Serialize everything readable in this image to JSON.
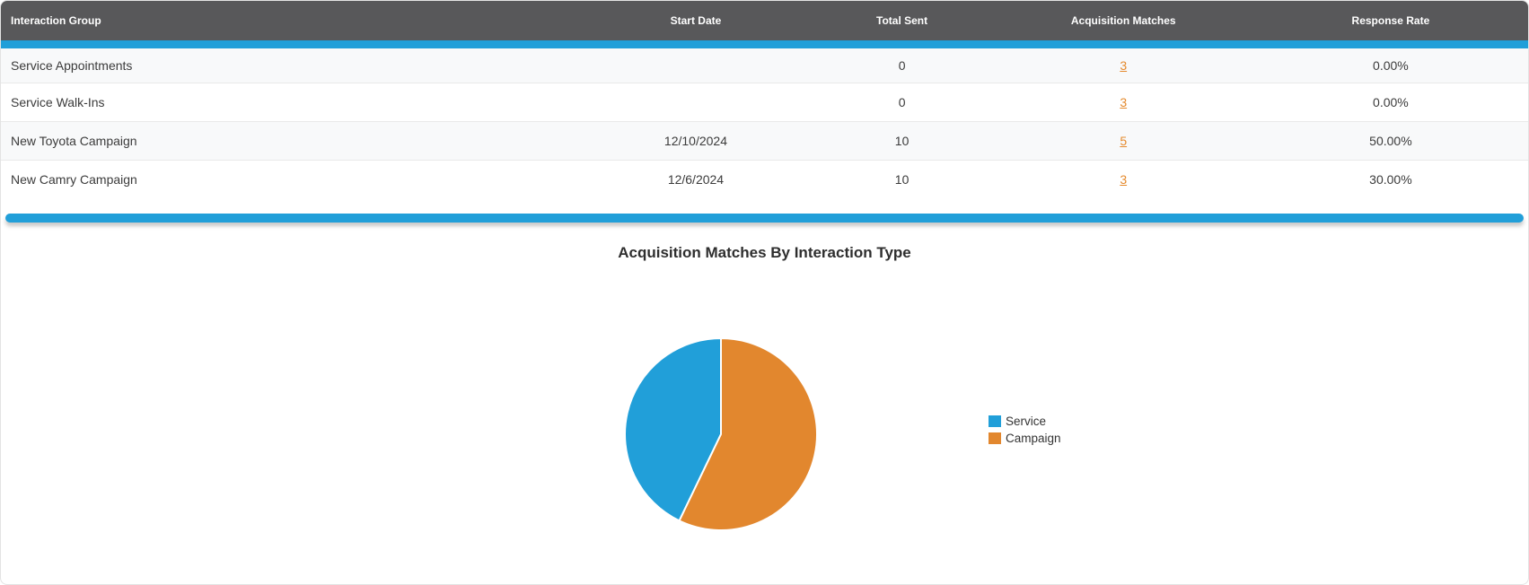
{
  "table": {
    "columns": [
      "Interaction Group",
      "Start Date",
      "Total Sent",
      "Acquisition Matches",
      "Response Rate"
    ],
    "rows": [
      {
        "group": "Service Appointments",
        "start_date": "",
        "total_sent": "0",
        "acquisition_matches": "3",
        "response_rate": "0.00%"
      },
      {
        "group": "Service Walk-Ins",
        "start_date": "",
        "total_sent": "0",
        "acquisition_matches": "3",
        "response_rate": "0.00%"
      },
      {
        "group": "New Toyota Campaign",
        "start_date": "12/10/2024",
        "total_sent": "10",
        "acquisition_matches": "5",
        "response_rate": "50.00%"
      },
      {
        "group": "New Camry Campaign",
        "start_date": "12/6/2024",
        "total_sent": "10",
        "acquisition_matches": "3",
        "response_rate": "30.00%"
      }
    ]
  },
  "chart_data": {
    "type": "pie",
    "title": "Acquisition Matches By Interaction Type",
    "slices": [
      {
        "label": "Service",
        "value": 6,
        "color": "#219fd9"
      },
      {
        "label": "Campaign",
        "value": 8,
        "color": "#e2872e"
      }
    ],
    "legend": [
      "Service",
      "Campaign"
    ],
    "legend_position": "right",
    "start_angle": "top",
    "direction": "counterclockwise",
    "slice_border_color": "#ffffff"
  },
  "colors": {
    "header_bg": "#58585a",
    "accent_bar": "#219fd9",
    "link": "#e58a2d",
    "row_alt_bg": "#f8f9fa"
  }
}
